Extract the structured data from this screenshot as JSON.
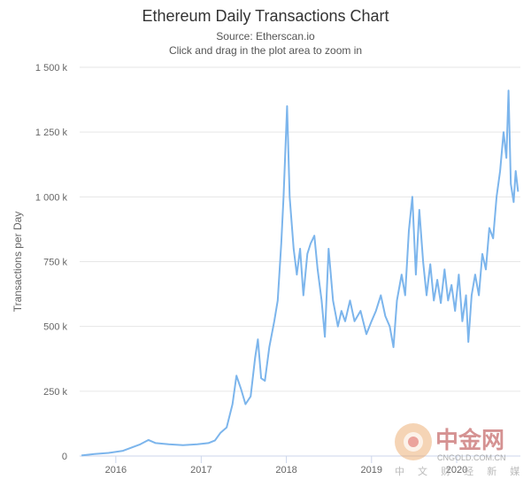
{
  "chart_data": {
    "type": "line",
    "title": "Ethereum Daily Transactions Chart",
    "subtitle_lines": [
      "Source: Etherscan.io",
      "Click and drag in the plot area to zoom in"
    ],
    "xlabel": "",
    "ylabel": "Transactions per Day",
    "xlim": [
      "2015-07-30",
      "2020-09-30"
    ],
    "ylim": [
      0,
      1500000
    ],
    "x_tick_labels": [
      "2016",
      "2017",
      "2018",
      "2019",
      "2020"
    ],
    "x_tick_dates": [
      "2016-01-01",
      "2017-01-01",
      "2018-01-01",
      "2019-01-01",
      "2020-01-01"
    ],
    "y_tick_labels": [
      "0",
      "250 k",
      "500 k",
      "750 k",
      "1 000 k",
      "1 250 k",
      "1 500 k"
    ],
    "y_tick_values": [
      0,
      250000,
      500000,
      750000,
      1000000,
      1250000,
      1500000
    ],
    "grid": "horizontal",
    "legend": "none",
    "series": [
      {
        "color": "#7cb5ec",
        "points": [
          [
            "2015-08-07",
            2000
          ],
          [
            "2015-10-01",
            8000
          ],
          [
            "2015-12-01",
            12000
          ],
          [
            "2016-02-01",
            20000
          ],
          [
            "2016-03-15",
            35000
          ],
          [
            "2016-04-15",
            45000
          ],
          [
            "2016-05-20",
            62000
          ],
          [
            "2016-06-20",
            50000
          ],
          [
            "2016-08-15",
            45000
          ],
          [
            "2016-10-15",
            42000
          ],
          [
            "2016-12-15",
            45000
          ],
          [
            "2017-02-01",
            50000
          ],
          [
            "2017-03-01",
            60000
          ],
          [
            "2017-03-25",
            90000
          ],
          [
            "2017-04-20",
            110000
          ],
          [
            "2017-05-15",
            200000
          ],
          [
            "2017-06-01",
            310000
          ],
          [
            "2017-06-20",
            260000
          ],
          [
            "2017-07-10",
            200000
          ],
          [
            "2017-08-01",
            230000
          ],
          [
            "2017-08-20",
            380000
          ],
          [
            "2017-09-01",
            450000
          ],
          [
            "2017-09-15",
            300000
          ],
          [
            "2017-10-01",
            290000
          ],
          [
            "2017-10-20",
            420000
          ],
          [
            "2017-11-10",
            520000
          ],
          [
            "2017-11-25",
            600000
          ],
          [
            "2017-12-10",
            820000
          ],
          [
            "2017-12-20",
            1000000
          ],
          [
            "2018-01-04",
            1350000
          ],
          [
            "2018-01-15",
            1000000
          ],
          [
            "2018-02-01",
            800000
          ],
          [
            "2018-02-15",
            700000
          ],
          [
            "2018-03-01",
            800000
          ],
          [
            "2018-03-15",
            620000
          ],
          [
            "2018-04-01",
            780000
          ],
          [
            "2018-04-15",
            820000
          ],
          [
            "2018-05-01",
            850000
          ],
          [
            "2018-05-15",
            720000
          ],
          [
            "2018-06-01",
            600000
          ],
          [
            "2018-06-15",
            460000
          ],
          [
            "2018-07-01",
            800000
          ],
          [
            "2018-07-20",
            600000
          ],
          [
            "2018-08-10",
            500000
          ],
          [
            "2018-08-25",
            560000
          ],
          [
            "2018-09-10",
            520000
          ],
          [
            "2018-10-01",
            600000
          ],
          [
            "2018-10-20",
            520000
          ],
          [
            "2018-11-15",
            560000
          ],
          [
            "2018-12-10",
            470000
          ],
          [
            "2019-01-01",
            520000
          ],
          [
            "2019-01-20",
            560000
          ],
          [
            "2019-02-10",
            620000
          ],
          [
            "2019-03-01",
            540000
          ],
          [
            "2019-03-20",
            500000
          ],
          [
            "2019-04-05",
            420000
          ],
          [
            "2019-04-20",
            600000
          ],
          [
            "2019-05-10",
            700000
          ],
          [
            "2019-05-25",
            620000
          ],
          [
            "2019-06-10",
            870000
          ],
          [
            "2019-06-25",
            1000000
          ],
          [
            "2019-07-10",
            700000
          ],
          [
            "2019-07-25",
            950000
          ],
          [
            "2019-08-10",
            750000
          ],
          [
            "2019-08-25",
            620000
          ],
          [
            "2019-09-10",
            740000
          ],
          [
            "2019-09-25",
            600000
          ],
          [
            "2019-10-10",
            680000
          ],
          [
            "2019-10-25",
            590000
          ],
          [
            "2019-11-10",
            720000
          ],
          [
            "2019-11-25",
            600000
          ],
          [
            "2019-12-10",
            660000
          ],
          [
            "2019-12-25",
            560000
          ],
          [
            "2020-01-10",
            700000
          ],
          [
            "2020-01-25",
            520000
          ],
          [
            "2020-02-10",
            620000
          ],
          [
            "2020-02-20",
            440000
          ],
          [
            "2020-03-05",
            620000
          ],
          [
            "2020-03-20",
            700000
          ],
          [
            "2020-04-05",
            620000
          ],
          [
            "2020-04-20",
            780000
          ],
          [
            "2020-05-05",
            720000
          ],
          [
            "2020-05-20",
            880000
          ],
          [
            "2020-06-05",
            840000
          ],
          [
            "2020-06-20",
            1000000
          ],
          [
            "2020-07-05",
            1100000
          ],
          [
            "2020-07-20",
            1250000
          ],
          [
            "2020-08-01",
            1150000
          ],
          [
            "2020-08-10",
            1410000
          ],
          [
            "2020-08-20",
            1050000
          ],
          [
            "2020-09-01",
            980000
          ],
          [
            "2020-09-10",
            1100000
          ],
          [
            "2020-09-20",
            1020000
          ]
        ]
      }
    ]
  },
  "watermark": {
    "brand": "中金网",
    "url": "CNGOLD.COM.CN",
    "tagline": "中 文 财 经 新 媒 体"
  }
}
